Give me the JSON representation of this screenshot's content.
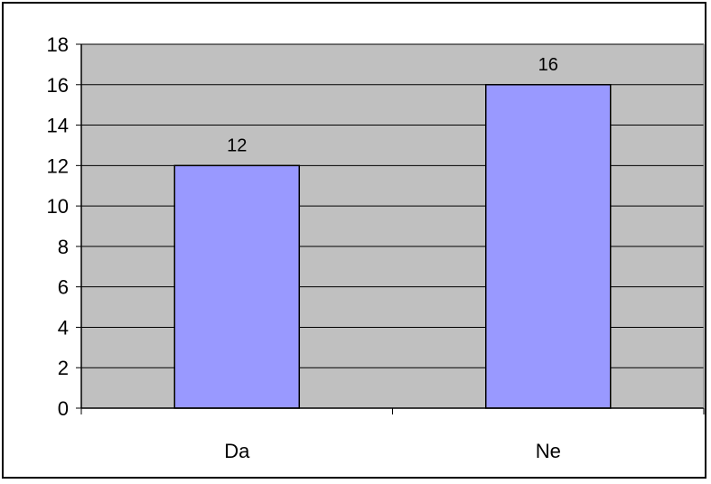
{
  "chart_data": {
    "type": "bar",
    "title": "",
    "xlabel": "",
    "ylabel": "",
    "categories": [
      "Da",
      "Ne"
    ],
    "values": [
      12,
      16
    ],
    "data_labels": [
      "12",
      "16"
    ],
    "ylim": [
      0,
      18
    ],
    "yticks": [
      "0",
      "2",
      "4",
      "6",
      "8",
      "10",
      "12",
      "14",
      "16",
      "18"
    ],
    "grid": true,
    "legend": "none",
    "colors": {
      "bar_fill": "#9999ff",
      "plot_background": "#c0c0c0",
      "gridline": "#000000"
    }
  }
}
